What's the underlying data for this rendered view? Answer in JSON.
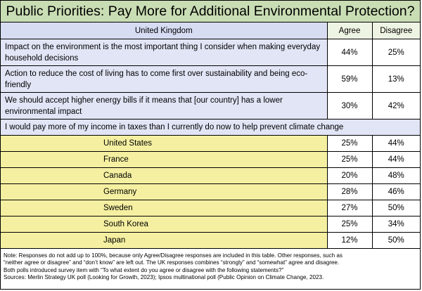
{
  "title": "Public Priorities: Pay More for Additional Environmental Protection?",
  "chart_data": {
    "type": "table",
    "title": "Public Priorities: Pay More for Additional Environmental Protection?",
    "uk_section": {
      "header": "United Kingdom",
      "columns": [
        "Agree",
        "Disagree"
      ],
      "rows": [
        {
          "statement": "Impact on the environment is the most important thing I consider when making everyday household decisions",
          "agree": "44%",
          "disagree": "25%"
        },
        {
          "statement": "Action to reduce the cost of living has to come first over sustainability and being eco-friendly",
          "agree": "59%",
          "disagree": "13%"
        },
        {
          "statement": "We should accept higher energy bills if it means that [our country] has a lower environmental impact",
          "agree": "30%",
          "disagree": "42%"
        }
      ]
    },
    "tax_section": {
      "statement": "I would pay more of my income in taxes than I currently do now to help prevent climate change",
      "rows": [
        {
          "country": "United States",
          "agree": "25%",
          "disagree": "44%"
        },
        {
          "country": "France",
          "agree": "25%",
          "disagree": "44%"
        },
        {
          "country": "Canada",
          "agree": "20%",
          "disagree": "48%"
        },
        {
          "country": "Germany",
          "agree": "28%",
          "disagree": "46%"
        },
        {
          "country": "Sweden",
          "agree": "27%",
          "disagree": "50%"
        },
        {
          "country": "South Korea",
          "agree": "25%",
          "disagree": "34%"
        },
        {
          "country": "Japan",
          "agree": "12%",
          "disagree": "50%"
        }
      ]
    }
  },
  "notes": {
    "line1": "Note:  Responses do not add up to 100%, because only Agree/Disagree responses are included in this table. Other responses, such as",
    "line2": "“neither agree or disagree” and “don’t know” are left out.  The UK responses combines “strongly” and “somewhat” agree and disagree.",
    "line3": "Both polls introduced survey item with “To  what extent do you agree or disagree with the following statements?”",
    "line4": "Sources: Merlin Strategy UK poll (Looking for Growth, 2023); Ipsos multinational poll (Public Opinion on Climate Change, 2023."
  }
}
